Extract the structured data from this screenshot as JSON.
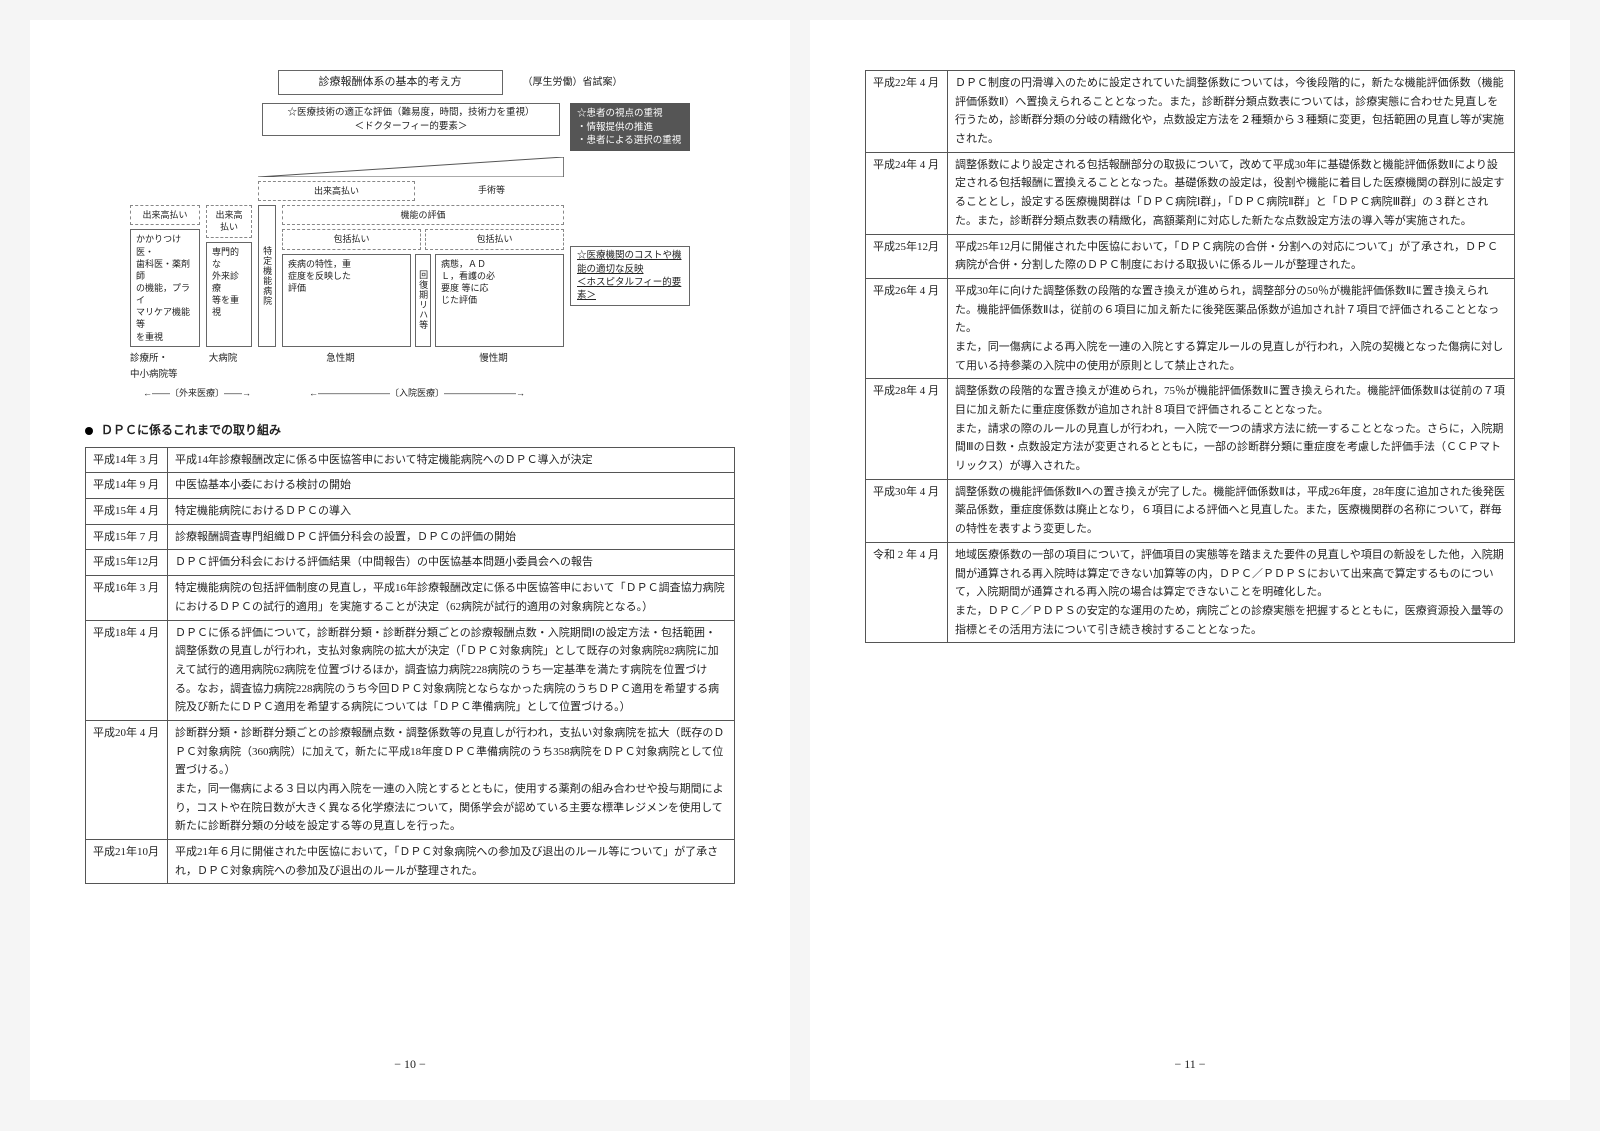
{
  "diagram": {
    "title": "診療報酬体系の基本的考え方",
    "note_right": "（厚生労働）省試案）",
    "sub_left": "☆医療技術の適正な評価（難易度，時間，技術力を重視）\n＜ドクターフィー的要素＞",
    "sub_right": "☆患者の視点の重視\n・情報提供の推進\n・患者による選択の重視",
    "small_deki": "出来高払い",
    "small_op": "手術等",
    "func_eval": "機能の評価",
    "houkatsu": "包括払い",
    "houkatsu2": "包括払い",
    "left_col": {
      "deki": "出来高払い",
      "body": "かかりつけ医・\n歯科医・薬剤師\nの機能，プライ\nマリケア機能等\nを重視"
    },
    "left_col2": {
      "deki": "出来高\n払い",
      "body": "専門的な\n外来診療\n等を重視"
    },
    "center_vert": "特定機能病院",
    "center_body": "疾病の特性，重\n症度を反映した\n評価",
    "right_vert": "回復期リハ等",
    "right_body": "病態，ＡＤ\nＬ，看護の必\n要度 等に応\nじた評価",
    "far_right": "☆医療機関のコストや機\n能の適切な反映\n＜ホスピタルフィー的要素＞",
    "foot1": "診療所・\n中小病院等",
    "foot2": "大病院",
    "foot3": "急性期",
    "foot4": "慢性期",
    "bracket1": "〔外来医療〕",
    "bracket2": "〔入院医療〕"
  },
  "section_heading": "ＤＰＣに係るこれまでの取り組み",
  "history_left": [
    {
      "date": "平成14年 3 月",
      "text": "平成14年診療報酬改定に係る中医協答申において特定機能病院へのＤＰＣ導入が決定"
    },
    {
      "date": "平成14年 9 月",
      "text": "中医協基本小委における検討の開始"
    },
    {
      "date": "平成15年 4 月",
      "text": "特定機能病院におけるＤＰＣの導入"
    },
    {
      "date": "平成15年 7 月",
      "text": "診療報酬調査専門組織ＤＰＣ評価分科会の設置，ＤＰＣの評価の開始"
    },
    {
      "date": "平成15年12月",
      "text": "ＤＰＣ評価分科会における評価結果（中間報告）の中医協基本問題小委員会への報告"
    },
    {
      "date": "平成16年 3 月",
      "text": "特定機能病院の包括評価制度の見直し，平成16年診療報酬改定に係る中医協答申において「ＤＰＣ調査協力病院におけるＤＰＣの試行的適用」を実施することが決定（62病院が試行的適用の対象病院となる。）"
    },
    {
      "date": "平成18年 4 月",
      "text": "ＤＰＣに係る評価について，診断群分類・診断群分類ごとの診療報酬点数・入院期間Ⅰの設定方法・包括範囲・調整係数の見直しが行われ，支払対象病院の拡大が決定（「ＤＰＣ対象病院」として既存の対象病院82病院に加えて試行的適用病院62病院を位置づけるほか，調査協力病院228病院のうち一定基準を満たす病院を位置づける。なお，調査協力病院228病院のうち今回ＤＰＣ対象病院とならなかった病院のうちＤＰＣ適用を希望する病院及び新たにＤＰＣ適用を希望する病院については「ＤＰＣ準備病院」として位置づける。）"
    },
    {
      "date": "平成20年 4 月",
      "text": "診断群分類・診断群分類ごとの診療報酬点数・調整係数等の見直しが行われ，支払い対象病院を拡大（既存のＤＰＣ対象病院（360病院）に加えて，新たに平成18年度ＤＰＣ準備病院のうち358病院をＤＰＣ対象病院として位置づける。）\nまた，同一傷病による３日以内再入院を一連の入院とするとともに，使用する薬剤の組み合わせや投与期間により，コストや在院日数が大きく異なる化学療法について，関係学会が認めている主要な標準レジメンを使用して新たに診断群分類の分岐を設定する等の見直しを行った。"
    },
    {
      "date": "平成21年10月",
      "text": "平成21年６月に開催された中医協において，「ＤＰＣ対象病院への参加及び退出のルール等について」が了承され，ＤＰＣ対象病院への参加及び退出のルールが整理された。"
    }
  ],
  "history_right": [
    {
      "date": "平成22年 4 月",
      "text": "ＤＰＣ制度の円滑導入のために設定されていた調整係数については，今後段階的に，新たな機能評価係数（機能評価係数Ⅱ）へ置換えられることとなった。また，診断群分類点数表については，診療実態に合わせた見直しを行うため，診断群分類の分岐の精緻化や，点数設定方法を２種類から３種類に変更，包括範囲の見直し等が実施された。"
    },
    {
      "date": "平成24年 4 月",
      "text": "調整係数により設定される包括報酬部分の取扱について，改めて平成30年に基礎係数と機能評価係数Ⅱにより設定される包括報酬に置換えることとなった。基礎係数の設定は，役割や機能に着目した医療機関の群別に設定することとし，設定する医療機関群は「ＤＰＣ病院Ⅰ群」，「ＤＰＣ病院Ⅱ群」と「ＤＰＣ病院Ⅲ群」の３群とされた。また，診断群分類点数表の精緻化，高額薬剤に対応した新たな点数設定方法の導入等が実施された。"
    },
    {
      "date": "平成25年12月",
      "text": "平成25年12月に開催された中医協において，「ＤＰＣ病院の合併・分割への対応について」が了承され，ＤＰＣ病院が合併・分割した際のＤＰＣ制度における取扱いに係るルールが整理された。"
    },
    {
      "date": "平成26年 4 月",
      "text": "平成30年に向けた調整係数の段階的な置き換えが進められ，調整部分の50％が機能評価係数Ⅱに置き換えられた。機能評価係数Ⅱは，従前の６項目に加え新たに後発医薬品係数が追加され計７項目で評価されることとなった。\nまた，同一傷病による再入院を一連の入院とする算定ルールの見直しが行われ，入院の契機となった傷病に対して用いる持参薬の入院中の使用が原則として禁止された。"
    },
    {
      "date": "平成28年 4 月",
      "text": "調整係数の段階的な置き換えが進められ，75％が機能評価係数Ⅱに置き換えられた。機能評価係数Ⅱは従前の７項目に加え新たに重症度係数が追加され計８項目で評価されることとなった。\nまた，請求の際のルールの見直しが行われ，一入院で一つの請求方法に統一することとなった。さらに，入院期間Ⅲの日数・点数設定方法が変更されるとともに，一部の診断群分類に重症度を考慮した評価手法（ＣＣＰマトリックス）が導入された。"
    },
    {
      "date": "平成30年 4 月",
      "text": "調整係数の機能評価係数Ⅱへの置き換えが完了した。機能評価係数Ⅱは，平成26年度，28年度に追加された後発医薬品係数，重症度係数は廃止となり，６項目による評価へと見直した。また，医療機関群の名称について，群毎の特性を表すよう変更した。"
    },
    {
      "date": "令和 2 年 4 月",
      "text": "地域医療係数の一部の項目について，評価項目の実態等を踏まえた要件の見直しや項目の新設をした他，入院期間が通算される再入院時は算定できない加算等の内，ＤＰＣ／ＰＤＰＳにおいて出来高で算定するものについて，入院期間が通算される再入院の場合は算定できないことを明確化した。\nまた，ＤＰＣ／ＰＤＰＳの安定的な運用のため，病院ごとの診療実態を把握するとともに，医療資源投入量等の指標とその活用方法について引き続き検討することとなった。"
    }
  ],
  "page_left": "− 10 −",
  "page_right": "− 11 −"
}
